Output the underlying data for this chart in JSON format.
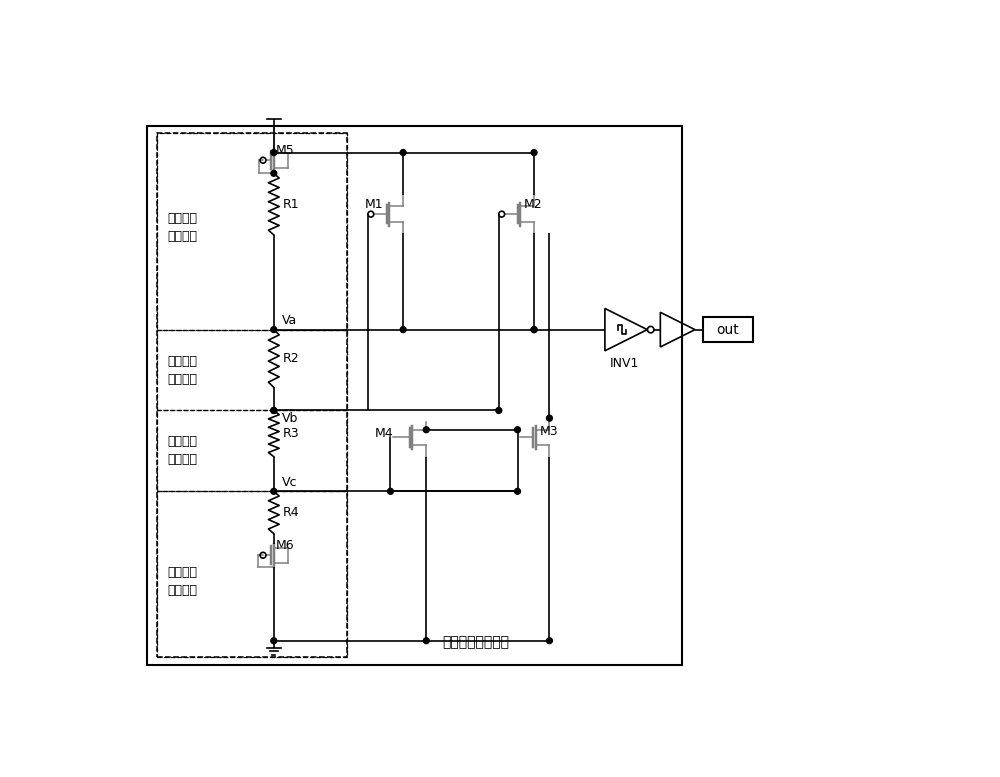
{
  "bg": "#ffffff",
  "lc": "#000000",
  "gc": "#808080",
  "fw": 10.0,
  "fh": 7.77,
  "labels": {
    "M1": "M1",
    "M2": "M2",
    "M3": "M3",
    "M4": "M4",
    "M5": "M5",
    "M6": "M6",
    "R1": "R1",
    "R2": "R2",
    "R3": "R3",
    "R4": "R4",
    "Va": "Va",
    "Vb": "Vb",
    "Vc": "Vc",
    "INV1": "INV1",
    "out": "out",
    "b1": "第一电际\n分压模块",
    "b2": "第二电际\n分压模块",
    "b3": "第三电际\n分压模块",
    "b4": "第四电际\n分压模块",
    "main": "复位信号产生电路"
  }
}
